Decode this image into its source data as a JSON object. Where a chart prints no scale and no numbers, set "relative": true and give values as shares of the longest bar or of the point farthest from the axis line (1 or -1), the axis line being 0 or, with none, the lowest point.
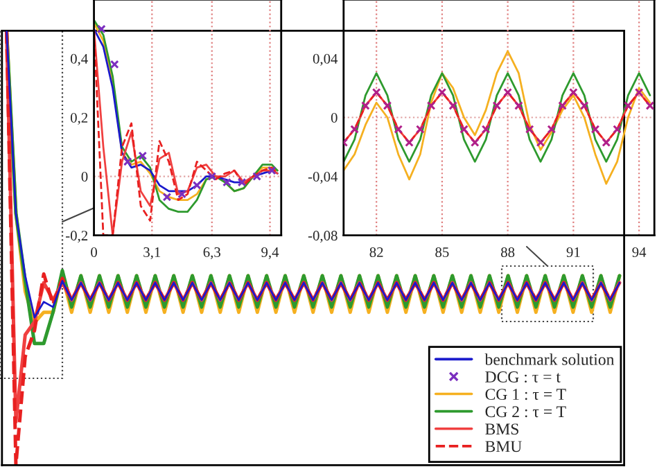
{
  "chart_data": [
    {
      "type": "line",
      "relative": true,
      "legend": "bottom right",
      "categories": [
        null,
        null,
        null,
        null,
        null,
        null,
        null,
        null,
        null,
        null,
        null,
        null,
        null,
        null,
        null,
        null,
        null,
        null,
        null,
        null,
        null,
        null,
        null,
        null,
        null,
        null,
        null,
        null,
        null,
        null,
        null,
        null,
        null,
        null,
        null,
        null,
        null,
        null,
        null,
        null,
        null,
        null,
        null,
        null,
        null,
        null,
        null,
        null,
        null,
        null,
        null,
        null,
        null,
        null,
        null,
        null,
        null,
        null,
        null,
        null,
        null,
        null,
        null,
        null,
        null,
        null,
        null
      ],
      "series": [
        {
          "name": "benchmark solution",
          "type": "line",
          "color": "#1a1acc",
          "values": [
            1.0,
            0.58,
            0.436,
            0.34,
            0.376,
            0.364,
            0.424,
            0.38,
            0.42,
            0.38,
            0.42,
            0.38,
            0.42,
            0.38,
            0.42,
            0.38,
            0.42,
            0.38,
            0.42,
            0.38,
            0.42,
            0.38,
            0.42,
            0.38,
            0.42,
            0.38,
            0.42,
            0.38,
            0.42,
            0.38,
            0.42,
            0.38,
            0.42,
            0.38,
            0.42,
            0.38,
            0.42,
            0.38,
            0.42,
            0.38,
            0.42,
            0.38,
            0.42,
            0.38,
            0.42,
            0.38,
            0.42,
            0.38,
            0.42,
            0.38,
            0.42,
            0.38,
            0.42,
            0.38,
            0.42,
            0.38,
            0.42,
            0.38,
            0.42,
            0.38,
            0.42,
            0.38,
            0.42,
            0.38,
            0.42,
            0.38,
            0.42
          ]
        },
        {
          "name": "DCG : τ = t",
          "marker": "cross",
          "color": "#7b2fbf",
          "values": [
            null,
            null,
            null,
            null,
            null,
            null,
            null,
            null,
            null,
            null,
            null,
            null,
            null,
            null,
            null,
            null,
            null,
            null,
            null,
            null,
            null,
            null,
            null,
            null,
            null,
            null,
            null,
            null,
            null,
            null,
            null,
            null,
            null,
            null,
            null,
            null,
            null,
            null,
            null,
            null,
            null,
            null,
            null,
            null,
            null,
            null,
            null,
            null,
            null,
            null,
            null,
            null,
            null,
            null,
            null,
            null,
            null,
            null,
            null,
            null,
            null,
            null,
            null,
            null,
            null,
            null,
            null
          ]
        },
        {
          "name": "CG 1 : τ = T",
          "type": "line",
          "color": "#f5b020",
          "values": [
            1.0,
            0.58,
            0.4,
            0.328,
            0.352,
            0.352,
            0.436,
            0.352,
            0.436,
            0.352,
            0.436,
            0.352,
            0.436,
            0.352,
            0.436,
            0.352,
            0.436,
            0.352,
            0.436,
            0.352,
            0.436,
            0.352,
            0.436,
            0.352,
            0.436,
            0.352,
            0.436,
            0.352,
            0.436,
            0.352,
            0.436,
            0.352,
            0.436,
            0.352,
            0.436,
            0.352,
            0.436,
            0.352,
            0.436,
            0.352,
            0.436,
            0.352,
            0.436,
            0.352,
            0.436,
            0.352,
            0.436,
            0.352,
            0.436,
            0.352,
            0.436,
            0.352,
            0.436,
            0.352,
            0.436,
            0.352,
            0.436,
            0.352,
            0.436,
            0.352,
            0.436,
            0.352,
            0.436,
            0.352,
            0.436,
            0.352,
            0.436
          ]
        },
        {
          "name": "CG 2 : τ = T",
          "type": "line",
          "color": "#2e9a2e",
          "values": [
            1.0,
            0.58,
            0.424,
            0.28,
            0.28,
            0.352,
            0.448,
            0.364,
            0.436,
            0.364,
            0.436,
            0.364,
            0.436,
            0.364,
            0.436,
            0.364,
            0.436,
            0.364,
            0.436,
            0.364,
            0.436,
            0.364,
            0.436,
            0.364,
            0.436,
            0.364,
            0.436,
            0.364,
            0.436,
            0.364,
            0.436,
            0.364,
            0.436,
            0.364,
            0.436,
            0.364,
            0.436,
            0.364,
            0.436,
            0.364,
            0.436,
            0.364,
            0.436,
            0.364,
            0.436,
            0.364,
            0.436,
            0.364,
            0.436,
            0.364,
            0.436,
            0.364,
            0.436,
            0.364,
            0.436,
            0.364,
            0.436,
            0.364,
            0.436,
            0.364,
            0.436,
            0.364,
            0.436,
            0.364,
            0.436,
            0.364,
            0.436
          ]
        },
        {
          "name": "BMS",
          "color": "#f04040",
          "values": [
            1.0,
            0.1,
            0.3,
            0.33,
            0.42,
            0.38,
            0.42,
            0.38,
            0.42,
            0.38,
            0.42,
            0.38,
            0.42,
            0.38,
            0.42,
            0.38,
            0.42,
            0.38,
            0.42,
            0.38,
            0.42,
            0.38,
            0.42,
            0.38,
            0.42,
            0.38,
            0.42,
            0.38,
            0.42,
            0.38,
            0.42,
            0.38,
            0.42,
            0.38,
            0.42,
            0.38,
            0.42,
            0.38,
            0.42,
            0.38,
            0.42,
            0.38,
            0.42,
            0.38,
            0.42,
            0.38,
            0.42,
            0.38,
            0.42,
            0.38,
            0.42,
            0.38,
            0.42,
            0.38,
            0.42,
            0.38,
            0.42,
            0.38,
            0.42,
            0.38,
            0.42,
            0.38,
            0.42,
            0.38,
            0.42,
            0.38,
            0.42
          ]
        },
        {
          "name": "BMU",
          "line_style": "dashed",
          "color": "#e82020",
          "values": [
            1.0,
            0.0,
            0.25,
            0.31,
            0.44,
            0.37,
            0.43,
            0.38,
            0.42,
            0.38,
            0.42,
            0.38,
            0.42,
            0.38,
            0.42,
            0.38,
            0.42,
            0.38,
            0.42,
            0.38,
            0.42,
            0.38,
            0.42,
            0.38,
            0.42,
            0.38,
            0.42,
            0.38,
            0.42,
            0.38,
            0.42,
            0.38,
            0.42,
            0.38,
            0.42,
            0.38,
            0.42,
            0.38,
            0.42,
            0.38,
            0.42,
            0.38,
            0.42,
            0.38,
            0.42,
            0.38,
            0.42,
            0.38,
            0.42,
            0.38,
            0.42,
            0.38,
            0.42,
            0.38,
            0.42,
            0.38,
            0.42,
            0.38,
            0.42,
            0.38,
            0.42,
            0.38,
            0.42,
            0.38,
            0.42,
            0.38,
            0.42
          ]
        }
      ]
    },
    {
      "type": "line",
      "grid": "x",
      "xlim": [
        0,
        10
      ],
      "ylim": [
        -0.2,
        0.6
      ],
      "xticks": [
        0,
        {
          "value": 3.1,
          "label": "3,1"
        },
        {
          "value": 6.3,
          "label": "6,3"
        },
        {
          "value": 9.4,
          "label": "9,4"
        }
      ],
      "yticks": [
        {
          "value": -0.2,
          "label": "-0,2"
        },
        0,
        {
          "value": 0.2,
          "label": "0,2"
        },
        {
          "value": 0.4,
          "label": "0,4"
        }
      ],
      "ref_lines": [
        {
          "axis": "y",
          "value": 0,
          "color": "#e0a0a0",
          "line_style": "dotted"
        }
      ],
      "series": [
        {
          "type": "line",
          "color": "#f5b020",
          "x": [
            0,
            0.5,
            1,
            1.5,
            2,
            2.5,
            3,
            3.5,
            4,
            4.5,
            5,
            5.5,
            6,
            6.5,
            7,
            7.5,
            8,
            8.5,
            9,
            9.5,
            9.8
          ],
          "values": [
            0.52,
            0.46,
            0.32,
            0.08,
            0.04,
            0.05,
            0.01,
            -0.05,
            -0.07,
            -0.08,
            -0.08,
            -0.06,
            -0.01,
            0.0,
            -0.02,
            -0.05,
            -0.04,
            0.0,
            0.03,
            0.03,
            0.02
          ]
        },
        {
          "type": "line",
          "color": "#2e9a2e",
          "x": [
            0,
            0.5,
            1,
            1.5,
            2,
            2.5,
            3,
            3.5,
            4,
            4.5,
            5,
            5.5,
            6,
            6.5,
            7,
            7.5,
            8,
            8.5,
            9,
            9.5,
            9.8
          ],
          "values": [
            0.53,
            0.48,
            0.34,
            0.1,
            0.05,
            0.07,
            0.03,
            -0.08,
            -0.11,
            -0.12,
            -0.12,
            -0.08,
            -0.01,
            0.0,
            -0.02,
            -0.05,
            -0.04,
            0.0,
            0.04,
            0.04,
            0.02
          ]
        },
        {
          "type": "line",
          "color": "#1a1acc",
          "x": [
            0,
            0.5,
            1,
            1.5,
            2,
            2.5,
            3,
            3.5,
            4,
            4.5,
            5,
            5.5,
            6,
            6.5,
            7,
            7.5,
            8,
            8.5,
            9,
            9.5,
            9.8
          ],
          "values": [
            0.5,
            0.44,
            0.3,
            0.08,
            0.03,
            0.04,
            0.02,
            -0.03,
            -0.05,
            -0.05,
            -0.05,
            -0.03,
            0.0,
            0.0,
            -0.01,
            -0.02,
            -0.02,
            0.0,
            0.01,
            0.02,
            0.01
          ]
        },
        {
          "type": "line",
          "color": "#f04040",
          "x": [
            0,
            0.5,
            1,
            1.5,
            2,
            2.5,
            3,
            3.5,
            4,
            4.5,
            5,
            5.5,
            6,
            6.5,
            7,
            7.5,
            8,
            8.5,
            9,
            9.5,
            9.8
          ],
          "values": [
            0.5,
            0.1,
            -0.2,
            0.05,
            0.15,
            -0.05,
            -0.1,
            0.06,
            0.08,
            -0.06,
            -0.05,
            0.03,
            0.04,
            0.0,
            0.0,
            0.02,
            -0.02,
            0.0,
            0.02,
            0.02,
            0.01
          ]
        },
        {
          "type": "line",
          "line_style": "dashed",
          "color": "#e82020",
          "x": [
            0,
            0.5,
            1,
            1.5,
            2,
            2.5,
            3,
            3.5,
            4,
            4.5,
            5,
            5.5,
            6,
            6.5,
            7,
            7.5,
            8,
            8.5,
            9,
            9.5,
            9.8
          ],
          "values": [
            0.5,
            -0.2,
            -0.2,
            0.1,
            0.18,
            -0.1,
            -0.15,
            0.12,
            0.05,
            -0.08,
            -0.06,
            0.05,
            0.02,
            -0.01,
            0.01,
            0.02,
            -0.03,
            0.0,
            0.02,
            0.03,
            0.01
          ]
        },
        {
          "type": "scatter",
          "marker": "cross",
          "color": "#7b2fbf",
          "x": [
            0.4,
            1.1,
            1.8,
            2.6,
            3.9,
            4.7,
            5.5,
            6.3,
            7.1,
            7.9,
            8.7,
            9.5
          ],
          "values": [
            0.5,
            0.38,
            0.05,
            0.07,
            -0.07,
            -0.06,
            -0.03,
            0.0,
            -0.02,
            -0.02,
            0.0,
            0.02
          ]
        }
      ]
    },
    {
      "type": "line",
      "grid": "x",
      "xlim": [
        80.5,
        94.7
      ],
      "ylim": [
        -0.08,
        0.08
      ],
      "xticks": [
        82,
        85,
        88,
        91,
        94
      ],
      "yticks": [
        {
          "value": -0.08,
          "label": "-0,08"
        },
        {
          "value": -0.04,
          "label": "-0,04"
        },
        0,
        {
          "value": 0.04,
          "label": "0,04"
        }
      ],
      "ref_lines": [
        {
          "axis": "y",
          "value": 0,
          "color": "#e0a0a0",
          "line_style": "dotted"
        }
      ],
      "series": [
        {
          "type": "line",
          "color": "#f5b020",
          "x": [
            80.5,
            81,
            81.5,
            82,
            82.5,
            83,
            83.5,
            84,
            84.5,
            85,
            85.5,
            86,
            86.5,
            87,
            87.5,
            88,
            88.5,
            89,
            89.5,
            90,
            90.5,
            91,
            91.5,
            92,
            92.5,
            93,
            93.5,
            94,
            94.5
          ],
          "values": [
            -0.036,
            -0.025,
            -0.005,
            0.01,
            0.0,
            -0.025,
            -0.042,
            -0.025,
            0.01,
            0.03,
            0.02,
            0.0,
            -0.012,
            0.005,
            0.03,
            0.045,
            0.03,
            -0.005,
            -0.022,
            -0.01,
            0.005,
            0.015,
            0.0,
            -0.025,
            -0.045,
            -0.03,
            0.0,
            0.02,
            0.01
          ]
        },
        {
          "type": "line",
          "color": "#2e9a2e",
          "x": [
            80.5,
            81,
            81.5,
            82,
            82.5,
            83,
            83.5,
            84,
            84.5,
            85,
            85.5,
            86,
            86.5,
            87,
            87.5,
            88,
            88.5,
            89,
            89.5,
            90,
            90.5,
            91,
            91.5,
            92,
            92.5,
            93,
            93.5,
            94,
            94.5
          ],
          "values": [
            -0.03,
            -0.015,
            0.015,
            0.03,
            0.015,
            -0.015,
            -0.03,
            -0.015,
            0.015,
            0.03,
            0.015,
            -0.015,
            -0.03,
            -0.015,
            0.015,
            0.03,
            0.015,
            -0.015,
            -0.03,
            -0.015,
            0.015,
            0.03,
            0.015,
            -0.015,
            -0.03,
            -0.015,
            0.015,
            0.03,
            0.015
          ]
        },
        {
          "type": "line",
          "color": "#f04040",
          "x": [
            80.5,
            81,
            81.5,
            82,
            82.5,
            83,
            83.5,
            84,
            84.5,
            85,
            85.5,
            86,
            86.5,
            87,
            87.5,
            88,
            88.5,
            89,
            89.5,
            90,
            90.5,
            91,
            91.5,
            92,
            92.5,
            93,
            93.5,
            94,
            94.5
          ],
          "values": [
            -0.017,
            -0.008,
            0.008,
            0.017,
            0.008,
            -0.008,
            -0.017,
            -0.008,
            0.008,
            0.017,
            0.008,
            -0.008,
            -0.017,
            -0.008,
            0.008,
            0.017,
            0.008,
            -0.008,
            -0.017,
            -0.008,
            0.008,
            0.017,
            0.008,
            -0.008,
            -0.017,
            -0.008,
            0.008,
            0.017,
            0.008
          ]
        },
        {
          "type": "line",
          "line_style": "dashed",
          "color": "#e82020",
          "x": [
            80.5,
            81,
            81.5,
            82,
            82.5,
            83,
            83.5,
            84,
            84.5,
            85,
            85.5,
            86,
            86.5,
            87,
            87.5,
            88,
            88.5,
            89,
            89.5,
            90,
            90.5,
            91,
            91.5,
            92,
            92.5,
            93,
            93.5,
            94,
            94.5
          ],
          "values": [
            -0.017,
            -0.008,
            0.008,
            0.017,
            0.008,
            -0.008,
            -0.017,
            -0.008,
            0.008,
            0.017,
            0.008,
            -0.008,
            -0.017,
            -0.008,
            0.008,
            0.017,
            0.008,
            -0.008,
            -0.017,
            -0.008,
            0.008,
            0.017,
            0.008,
            -0.008,
            -0.017,
            -0.008,
            0.008,
            0.017,
            0.008
          ]
        },
        {
          "type": "scatter",
          "marker": "cross",
          "color": "#b0208a",
          "x": [
            80.5,
            81,
            81.5,
            82,
            82.5,
            83,
            83.5,
            84,
            84.5,
            85,
            85.5,
            86,
            86.5,
            87,
            87.5,
            88,
            88.5,
            89,
            89.5,
            90,
            90.5,
            91,
            91.5,
            92,
            92.5,
            93,
            93.5,
            94,
            94.5
          ],
          "values": [
            -0.017,
            -0.008,
            0.008,
            0.017,
            0.008,
            -0.008,
            -0.017,
            -0.008,
            0.008,
            0.017,
            0.008,
            -0.008,
            -0.017,
            -0.008,
            0.008,
            0.017,
            0.008,
            -0.008,
            -0.017,
            -0.008,
            0.008,
            0.017,
            0.008,
            -0.008,
            -0.017,
            -0.008,
            0.008,
            0.017,
            0.008
          ]
        }
      ]
    }
  ]
}
